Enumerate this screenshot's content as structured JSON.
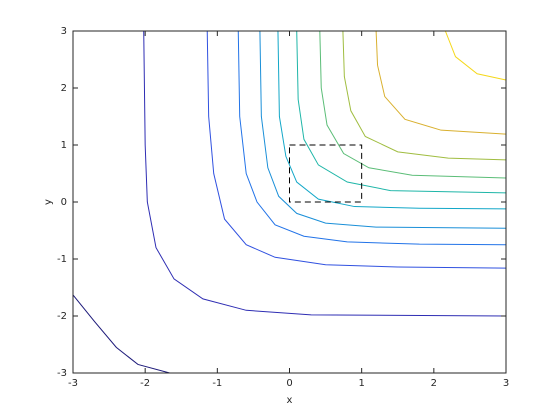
{
  "chart_data": {
    "type": "contour",
    "xlabel": "x",
    "ylabel": "y",
    "xlim": [
      -3,
      3
    ],
    "ylim": [
      -3,
      3
    ],
    "xticks": [
      -3,
      -2,
      -1,
      0,
      1,
      2,
      3
    ],
    "yticks": [
      -3,
      -2,
      -1,
      0,
      1,
      2,
      3
    ],
    "rectangle": {
      "x": [
        0,
        1
      ],
      "y": [
        0,
        1
      ],
      "color": "#000000"
    },
    "series": [
      {
        "color": "#1d1a7a",
        "x": [
          -3,
          -2.7,
          -2.4,
          -2.1,
          -1.66
        ],
        "y": [
          -1.63,
          -2.1,
          -2.55,
          -2.85,
          -3
        ]
      },
      {
        "color": "#2e2db3",
        "x": [
          -2.02,
          -2.0,
          -1.97,
          -1.85,
          -1.6,
          -1.2,
          -0.6,
          0.3,
          3
        ],
        "y": [
          3,
          1,
          0,
          -0.8,
          -1.35,
          -1.7,
          -1.9,
          -1.98,
          -2.0
        ]
      },
      {
        "color": "#3051e0",
        "x": [
          -1.14,
          -1.12,
          -1.05,
          -0.9,
          -0.6,
          -0.2,
          0.5,
          1.5,
          3
        ],
        "y": [
          3,
          1.5,
          0.5,
          -0.3,
          -0.75,
          -0.97,
          -1.1,
          -1.14,
          -1.16
        ]
      },
      {
        "color": "#2273e8",
        "x": [
          -0.71,
          -0.69,
          -0.6,
          -0.45,
          -0.2,
          0.2,
          0.8,
          1.8,
          3
        ],
        "y": [
          3,
          1.5,
          0.5,
          0,
          -0.4,
          -0.6,
          -0.7,
          -0.74,
          -0.75
        ]
      },
      {
        "color": "#1a8fd8",
        "x": [
          -0.41,
          -0.39,
          -0.3,
          -0.15,
          0.1,
          0.5,
          1.2,
          3
        ],
        "y": [
          3,
          1.5,
          0.6,
          0.1,
          -0.2,
          -0.37,
          -0.44,
          -0.46
        ]
      },
      {
        "color": "#12a7c8",
        "x": [
          -0.16,
          -0.14,
          -0.05,
          0.1,
          0.4,
          0.9,
          1.8,
          3
        ],
        "y": [
          3,
          1.5,
          0.8,
          0.35,
          0.05,
          -0.08,
          -0.11,
          -0.12
        ]
      },
      {
        "color": "#1fb6a8",
        "x": [
          0.1,
          0.12,
          0.2,
          0.4,
          0.8,
          1.4,
          3
        ],
        "y": [
          3,
          1.8,
          1.1,
          0.65,
          0.35,
          0.2,
          0.16
        ]
      },
      {
        "color": "#5bbd77",
        "x": [
          0.42,
          0.44,
          0.52,
          0.75,
          1.1,
          1.7,
          3
        ],
        "y": [
          3,
          2,
          1.35,
          0.85,
          0.6,
          0.47,
          0.42
        ]
      },
      {
        "color": "#a0bd40",
        "x": [
          0.74,
          0.76,
          0.85,
          1.05,
          1.5,
          2.2,
          3
        ],
        "y": [
          3,
          2.2,
          1.6,
          1.15,
          0.88,
          0.77,
          0.74
        ]
      },
      {
        "color": "#d9b02f",
        "x": [
          1.2,
          1.22,
          1.32,
          1.6,
          2.1,
          3
        ],
        "y": [
          3,
          2.4,
          1.85,
          1.45,
          1.26,
          1.19
        ]
      },
      {
        "color": "#f5d81a",
        "x": [
          2.16,
          2.3,
          2.6,
          3
        ],
        "y": [
          3,
          2.55,
          2.25,
          2.14
        ]
      }
    ]
  }
}
